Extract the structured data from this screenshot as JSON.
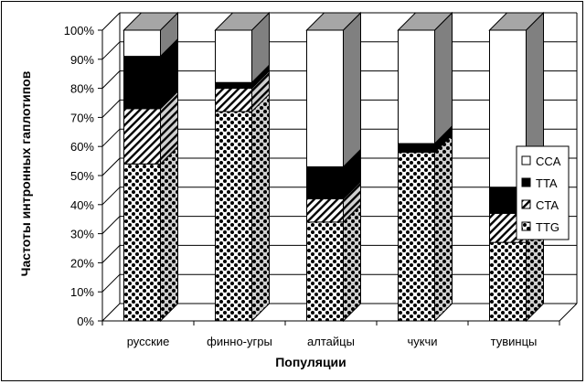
{
  "chart_data": {
    "type": "bar",
    "stacked": true,
    "three_d": true,
    "categories": [
      "русские",
      "финно-угры",
      "алтайцы",
      "чукчи",
      "тувинцы"
    ],
    "series": [
      {
        "name": "TTG",
        "values": [
          54,
          72,
          34,
          58,
          27
        ],
        "pattern": "checker"
      },
      {
        "name": "CTA",
        "values": [
          19,
          8,
          8,
          0,
          10
        ],
        "pattern": "diagonal"
      },
      {
        "name": "TTA",
        "values": [
          18,
          2,
          11,
          3,
          9
        ],
        "pattern": "solid-black"
      },
      {
        "name": "CCA",
        "values": [
          9,
          18,
          47,
          39,
          54
        ],
        "pattern": "white"
      }
    ],
    "y_ticks": [
      "0%",
      "10%",
      "20%",
      "30%",
      "40%",
      "50%",
      "60%",
      "70%",
      "80%",
      "90%",
      "100%"
    ],
    "ylim": [
      0,
      100
    ],
    "ylabel": "Частоты интронных гаплотипов",
    "xlabel": "Популяции",
    "grid": true,
    "legend_position": "right",
    "legend_order": [
      "CCA",
      "TTA",
      "CTA",
      "TTG"
    ],
    "colors": {
      "side": "#808080",
      "top": "#a6a6a6",
      "line": "#000000",
      "fill": "#ffffff"
    }
  }
}
